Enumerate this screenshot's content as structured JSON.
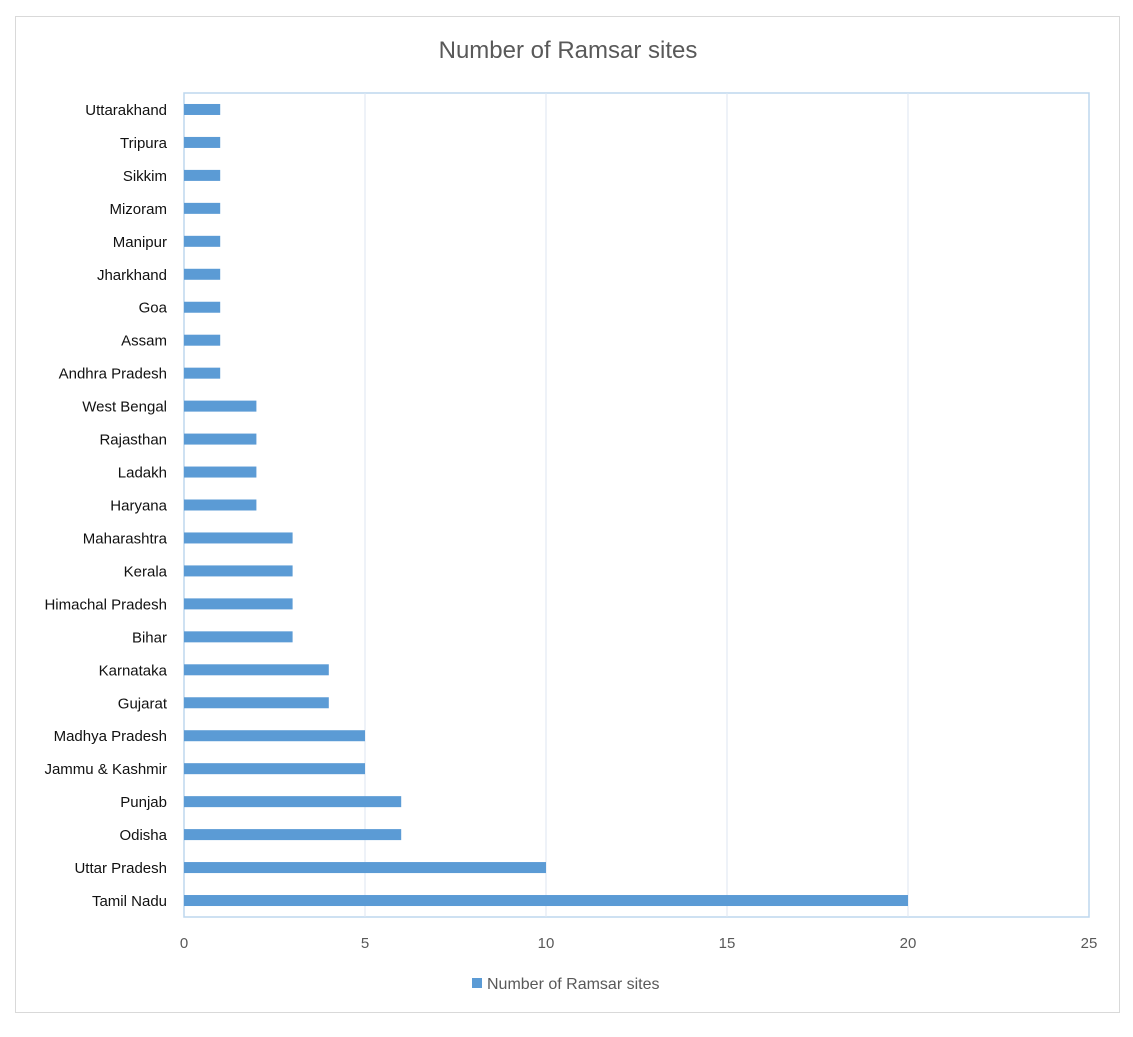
{
  "chart_data": {
    "type": "bar",
    "orientation": "horizontal",
    "title": "Number of  Ramsar sites",
    "categories": [
      "Tamil Nadu",
      "Uttar Pradesh",
      "Odisha",
      "Punjab",
      "Jammu & Kashmir",
      "Madhya Pradesh",
      "Gujarat",
      "Karnataka",
      "Bihar",
      "Himachal Pradesh",
      "Kerala",
      "Maharashtra",
      "Haryana",
      "Ladakh",
      "Rajasthan",
      "West Bengal",
      "Andhra Pradesh",
      "Assam",
      "Goa",
      "Jharkhand",
      "Manipur",
      "Mizoram",
      "Sikkim",
      "Tripura",
      "Uttarakhand"
    ],
    "series": [
      {
        "name": "Number of  Ramsar sites",
        "values": [
          20,
          10,
          6,
          6,
          5,
          5,
          4,
          4,
          3,
          3,
          3,
          3,
          2,
          2,
          2,
          2,
          1,
          1,
          1,
          1,
          1,
          1,
          1,
          1,
          1
        ],
        "color": "#5b9bd5"
      }
    ],
    "xlim": [
      0,
      25
    ],
    "xticks": [
      0,
      5,
      10,
      15,
      20,
      25
    ],
    "grid": true,
    "legend": "bottom"
  }
}
